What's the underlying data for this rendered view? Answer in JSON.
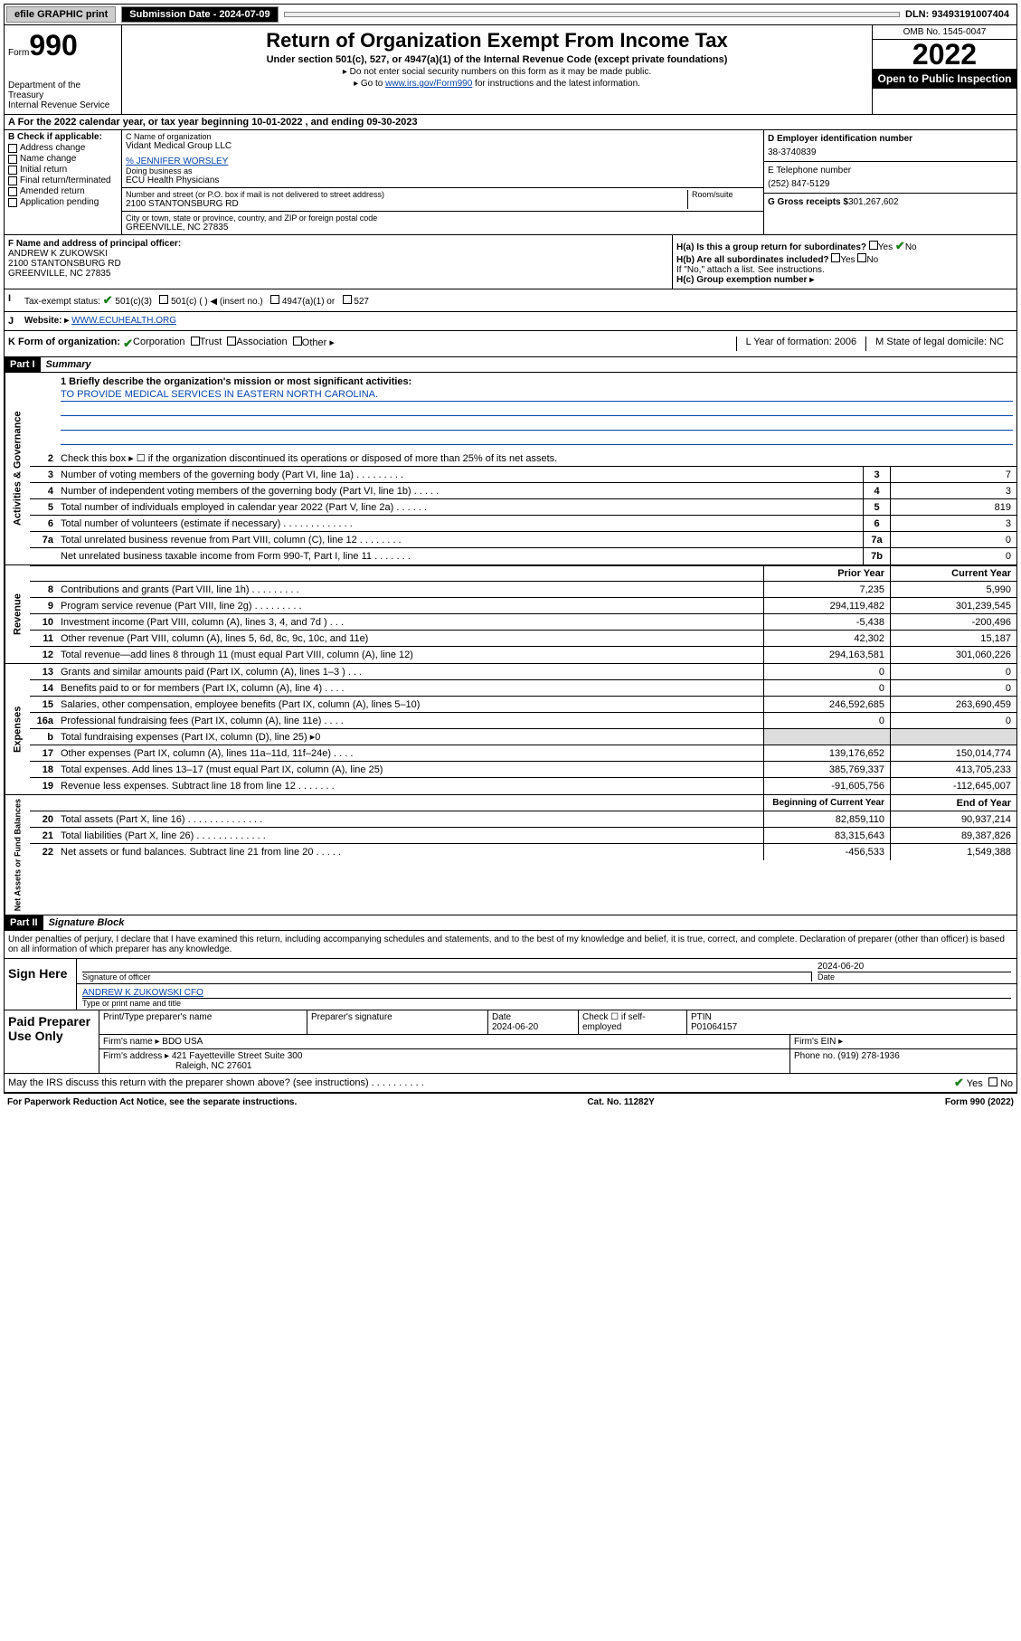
{
  "top_bar": {
    "efile_btn": "efile GRAPHIC print",
    "sub_date_label": "Submission Date - 2024-07-09",
    "dln": "DLN: 93493191007404"
  },
  "header": {
    "form_word": "Form",
    "form_num": "990",
    "dept": "Department of the Treasury",
    "irs": "Internal Revenue Service",
    "title": "Return of Organization Exempt From Income Tax",
    "subtitle": "Under section 501(c), 527, or 4947(a)(1) of the Internal Revenue Code (except private foundations)",
    "note1": "▸ Do not enter social security numbers on this form as it may be made public.",
    "note2_pre": "▸ Go to ",
    "note2_link": "www.irs.gov/Form990",
    "note2_post": " for instructions and the latest information.",
    "omb": "OMB No. 1545-0047",
    "year": "2022",
    "open": "Open to Public Inspection"
  },
  "row_a": "A For the 2022 calendar year, or tax year beginning 10-01-2022    , and ending 09-30-2023",
  "col_b": {
    "header": "B Check if applicable:",
    "opts": [
      "Address change",
      "Name change",
      "Initial return",
      "Final return/terminated",
      "Amended return",
      "Application pending"
    ]
  },
  "col_c": {
    "name_label": "C Name of organization",
    "name": "Vidant Medical Group LLC",
    "care_of": "% JENNIFER WORSLEY",
    "dba_label": "Doing business as",
    "dba": "ECU Health Physicians",
    "addr_label": "Number and street (or P.O. box if mail is not delivered to street address)",
    "room_label": "Room/suite",
    "addr": "2100 STANTONSBURG RD",
    "city_label": "City or town, state or province, country, and ZIP or foreign postal code",
    "city": "GREENVILLE, NC  27835"
  },
  "col_d": {
    "ein_label": "D Employer identification number",
    "ein": "38-3740839",
    "tel_label": "E Telephone number",
    "tel": "(252) 847-5129",
    "gross_label": "G Gross receipts $",
    "gross": "301,267,602"
  },
  "row_f": {
    "label": "F Name and address of principal officer:",
    "name": "ANDREW K ZUKOWSKI",
    "addr1": "2100 STANTONSBURG RD",
    "addr2": "GREENVILLE, NC  27835"
  },
  "row_h": {
    "ha_label": "H(a)  Is this a group return for subordinates?",
    "ha_yes": "Yes",
    "ha_no": "No",
    "hb_label": "H(b)  Are all subordinates included?",
    "hb_note": "If \"No,\" attach a list. See instructions.",
    "hc_label": "H(c)  Group exemption number ▸"
  },
  "row_i": {
    "lbl": "I",
    "text": "Tax-exempt status:",
    "opt1": "501(c)(3)",
    "opt2": "501(c) (  ) ◀ (insert no.)",
    "opt3": "4947(a)(1) or",
    "opt4": "527"
  },
  "row_j": {
    "lbl": "J",
    "label": "Website: ▸",
    "val": "WWW.ECUHEALTH.ORG"
  },
  "row_klm": {
    "k": "K Form of organization:",
    "k_opts": [
      "Corporation",
      "Trust",
      "Association",
      "Other ▸"
    ],
    "l": "L Year of formation: 2006",
    "m": "M State of legal domicile: NC"
  },
  "part1": {
    "header": "Part I",
    "title": "Summary",
    "l1_label": "1  Briefly describe the organization's mission or most significant activities:",
    "l1_val": "TO PROVIDE MEDICAL SERVICES IN EASTERN NORTH CAROLINA.",
    "l2": "Check this box ▸ ☐  if the organization discontinued its operations or disposed of more than 25% of its net assets.",
    "lines_gov": [
      {
        "n": "3",
        "t": "Number of voting members of the governing body (Part VI, line 1a)  .    .    .    .    .    .    .    .    .",
        "box": "3",
        "v": "7"
      },
      {
        "n": "4",
        "t": "Number of independent voting members of the governing body (Part VI, line 1b)   .    .    .    .    .",
        "box": "4",
        "v": "3"
      },
      {
        "n": "5",
        "t": "Total number of individuals employed in calendar year 2022 (Part V, line 2a)   .    .    .    .    .    .",
        "box": "5",
        "v": "819"
      },
      {
        "n": "6",
        "t": "Total number of volunteers (estimate if necessary)   .    .    .    .    .    .    .    .    .    .    .    .    .",
        "box": "6",
        "v": "3"
      },
      {
        "n": "7a",
        "t": "Total unrelated business revenue from Part VIII, column (C), line 12   .    .    .    .    .    .    .    .",
        "box": "7a",
        "v": "0"
      },
      {
        "n": "",
        "t": "Net unrelated business taxable income from Form 990-T, Part I, line 11   .    .    .    .    .    .    .",
        "box": "7b",
        "v": "0"
      }
    ],
    "prior_hdr": "Prior Year",
    "curr_hdr": "Current Year",
    "lines_rev": [
      {
        "n": "8",
        "t": "Contributions and grants (Part VIII, line 1h)   .    .    .    .    .    .    .    .    .",
        "p": "7,235",
        "c": "5,990"
      },
      {
        "n": "9",
        "t": "Program service revenue (Part VIII, line 2g)   .    .    .    .    .    .    .    .    .",
        "p": "294,119,482",
        "c": "301,239,545"
      },
      {
        "n": "10",
        "t": "Investment income (Part VIII, column (A), lines 3, 4, and 7d )    .    .    .",
        "p": "-5,438",
        "c": "-200,496"
      },
      {
        "n": "11",
        "t": "Other revenue (Part VIII, column (A), lines 5, 6d, 8c, 9c, 10c, and 11e)",
        "p": "42,302",
        "c": "15,187"
      },
      {
        "n": "12",
        "t": "Total revenue—add lines 8 through 11 (must equal Part VIII, column (A), line 12)",
        "p": "294,163,581",
        "c": "301,060,226"
      }
    ],
    "lines_exp": [
      {
        "n": "13",
        "t": "Grants and similar amounts paid (Part IX, column (A), lines 1–3 )   .    .    .",
        "p": "0",
        "c": "0"
      },
      {
        "n": "14",
        "t": "Benefits paid to or for members (Part IX, column (A), line 4)   .    .    .    .",
        "p": "0",
        "c": "0"
      },
      {
        "n": "15",
        "t": "Salaries, other compensation, employee benefits (Part IX, column (A), lines 5–10)",
        "p": "246,592,685",
        "c": "263,690,459"
      },
      {
        "n": "16a",
        "t": "Professional fundraising fees (Part IX, column (A), line 11e)   .    .    .    .",
        "p": "0",
        "c": "0"
      },
      {
        "n": "b",
        "t": "Total fundraising expenses (Part IX, column (D), line 25) ▸0",
        "p": "",
        "c": "",
        "shaded": true
      },
      {
        "n": "17",
        "t": "Other expenses (Part IX, column (A), lines 11a–11d, 11f–24e)   .    .    .    .",
        "p": "139,176,652",
        "c": "150,014,774"
      },
      {
        "n": "18",
        "t": "Total expenses. Add lines 13–17 (must equal Part IX, column (A), line 25)",
        "p": "385,769,337",
        "c": "413,705,233"
      },
      {
        "n": "19",
        "t": "Revenue less expenses. Subtract line 18 from line 12   .    .    .    .    .    .    .",
        "p": "-91,605,756",
        "c": "-112,645,007"
      }
    ],
    "beg_hdr": "Beginning of Current Year",
    "end_hdr": "End of Year",
    "lines_net": [
      {
        "n": "20",
        "t": "Total assets (Part X, line 16)   .    .    .    .    .    .    .    .    .    .    .    .    .    .",
        "p": "82,859,110",
        "c": "90,937,214"
      },
      {
        "n": "21",
        "t": "Total liabilities (Part X, line 26)   .    .    .    .    .    .    .    .    .    .    .    .    .",
        "p": "83,315,643",
        "c": "89,387,826"
      },
      {
        "n": "22",
        "t": "Net assets or fund balances. Subtract line 21 from line 20   .    .    .    .    .",
        "p": "-456,533",
        "c": "1,549,388"
      }
    ],
    "vert_gov": "Activities & Governance",
    "vert_rev": "Revenue",
    "vert_exp": "Expenses",
    "vert_net": "Net Assets or Fund Balances"
  },
  "part2": {
    "header": "Part II",
    "title": "Signature Block",
    "intro": "Under penalties of perjury, I declare that I have examined this return, including accompanying schedules and statements, and to the best of my knowledge and belief, it is true, correct, and complete. Declaration of preparer (other than officer) is based on all information of which preparer has any knowledge.",
    "sign_here": "Sign Here",
    "sig_of_officer": "Signature of officer",
    "sig_date": "2024-06-20",
    "date_label": "Date",
    "officer_name": "ANDREW K ZUKOWSKI CFO",
    "name_title_label": "Type or print name and title",
    "paid_prep": "Paid Preparer Use Only",
    "prep_name_label": "Print/Type preparer's name",
    "prep_sig_label": "Preparer's signature",
    "prep_date_label": "Date",
    "prep_date": "2024-06-20",
    "prep_check_label": "Check ☐ if self-employed",
    "ptin_label": "PTIN",
    "ptin": "P01064157",
    "firm_name_label": "Firm's name    ▸",
    "firm_name": "BDO USA",
    "firm_ein_label": "Firm's EIN ▸",
    "firm_addr_label": "Firm's address ▸",
    "firm_addr1": "421 Fayetteville Street Suite 300",
    "firm_addr2": "Raleigh, NC  27601",
    "phone_label": "Phone no.",
    "phone": "(919) 278-1936",
    "may_irs": "May the IRS discuss this return with the preparer shown above? (see instructions)   .    .    .    .    .    .    .    .    .    .",
    "yes": "Yes",
    "no": "No"
  },
  "footer": {
    "left": "For Paperwork Reduction Act Notice, see the separate instructions.",
    "mid": "Cat. No. 11282Y",
    "right": "Form 990 (2022)"
  }
}
